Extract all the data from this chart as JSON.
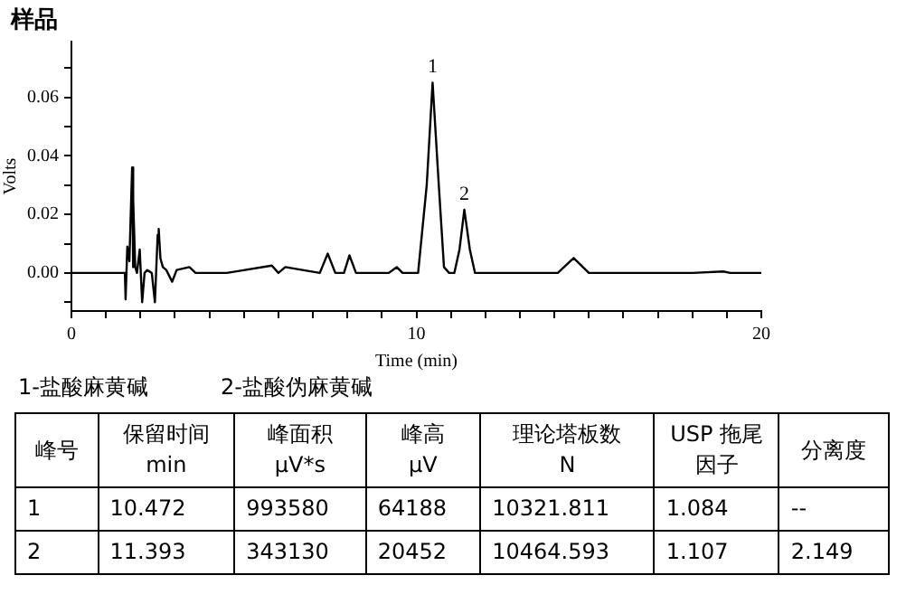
{
  "chart_data": {
    "type": "line",
    "title": "样品",
    "xlabel": "Time (min)",
    "ylabel": "Volts",
    "xlim": [
      0,
      20
    ],
    "ylim": [
      -0.013,
      0.079
    ],
    "xticks": [
      0,
      {
        "value": 1,
        "label": null
      },
      {
        "value": 2,
        "label": null
      },
      {
        "value": 3,
        "label": null
      },
      {
        "value": 4,
        "label": null
      },
      {
        "value": 5,
        "label": null
      },
      {
        "value": 6,
        "label": null
      },
      {
        "value": 7,
        "label": null
      },
      {
        "value": 8,
        "label": null
      },
      {
        "value": 9,
        "label": null
      },
      10,
      {
        "value": 11,
        "label": null
      },
      {
        "value": 12,
        "label": null
      },
      {
        "value": 13,
        "label": null
      },
      {
        "value": 14,
        "label": null
      },
      {
        "value": 15,
        "label": null
      },
      {
        "value": 16,
        "label": null
      },
      {
        "value": 17,
        "label": null
      },
      {
        "value": 18,
        "label": null
      },
      {
        "value": 19,
        "label": null
      },
      20
    ],
    "yticks": [
      {
        "value": -0.01,
        "label": null
      },
      {
        "value": 0,
        "label": "0.00"
      },
      {
        "value": 0.01,
        "label": null
      },
      {
        "value": 0.02,
        "label": "0.02"
      },
      {
        "value": 0.03,
        "label": null
      },
      {
        "value": 0.04,
        "label": "0.04"
      },
      {
        "value": 0.05,
        "label": null
      },
      {
        "value": 0.06,
        "label": "0.06"
      },
      {
        "value": 0.07,
        "label": null
      }
    ],
    "grid": false,
    "legend": false,
    "marker": "none",
    "line_style": "solid",
    "series": [
      {
        "color": "#000000",
        "x": [
          0,
          1.55,
          1.57,
          1.62,
          1.68,
          1.76,
          1.78,
          1.8,
          1.85,
          1.9,
          1.98,
          2.05,
          2.12,
          2.2,
          2.33,
          2.42,
          2.5,
          2.53,
          2.58,
          2.65,
          2.75,
          2.92,
          3.05,
          3.42,
          3.6,
          4.5,
          5.81,
          6.0,
          6.2,
          7.2,
          7.43,
          7.65,
          7.9,
          8.06,
          8.25,
          9.2,
          9.43,
          9.6,
          10.05,
          10.3,
          10.47,
          10.65,
          10.8,
          10.95,
          11.1,
          11.25,
          11.39,
          11.55,
          11.7,
          14.1,
          14.56,
          15.0,
          18.0,
          18.9,
          19.1,
          20
        ],
        "values": [
          0,
          0,
          -0.009,
          0.009,
          0.004,
          0.036,
          0.002,
          0.025,
          0.002,
          0,
          0.008,
          -0.01,
          0,
          0.001,
          0,
          -0.01,
          0.013,
          0.015,
          0.005,
          0.002,
          0.001,
          -0.003,
          0.001,
          0.002,
          0,
          0,
          0.0025,
          0,
          0.002,
          0,
          0.0066,
          0,
          0,
          0.006,
          0,
          0,
          0.002,
          0,
          0,
          0.03,
          0.065,
          0.03,
          0.002,
          0,
          0,
          0.008,
          0.0216,
          0.008,
          0,
          0,
          0.0051,
          0,
          0,
          0.0005,
          0,
          0
        ]
      }
    ],
    "annotations": [
      {
        "text": "1",
        "x": 10.47,
        "y": 0.065
      },
      {
        "text": "2",
        "x": 11.39,
        "y": 0.0216
      },
      "1-盐酸麻黄碱",
      "2-盐酸伪麻黄碱",
      "峰号",
      "保留时间\nmin",
      "峰面积\nμV*s",
      "峰高\nμV",
      "理论塔板数\nN",
      "USP 拖尾因子",
      "分离度",
      "1",
      "10.472",
      "993580",
      "64188",
      "10321.811",
      "1.084",
      "--",
      "2",
      "11.393",
      "343130",
      "20452",
      "10464.593",
      "1.107",
      "2.149"
    ]
  }
}
